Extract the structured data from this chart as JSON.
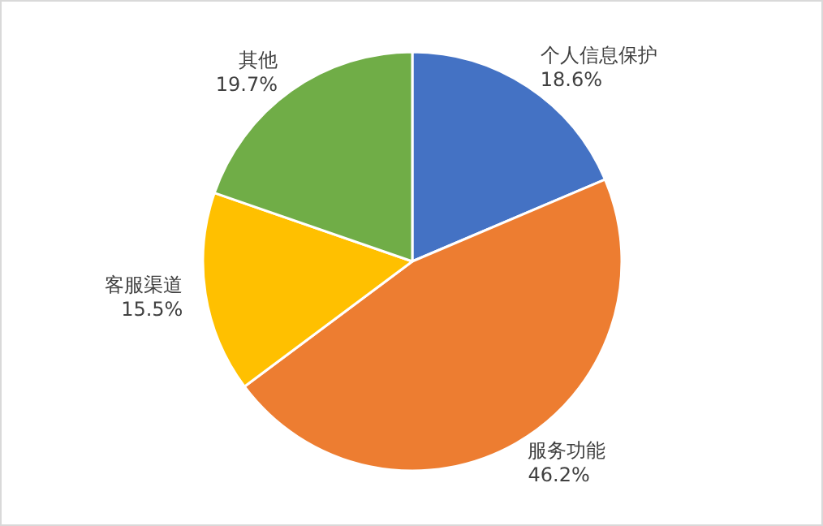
{
  "chart_data": {
    "type": "pie",
    "categories": [
      "个人信息保护",
      "服务功能",
      "客服渠道",
      "其他"
    ],
    "values": [
      18.6,
      46.2,
      15.5,
      19.7
    ],
    "value_labels": [
      "18.6%",
      "46.2%",
      "15.5%",
      "19.7%"
    ],
    "colors": [
      "#4472c4",
      "#ed7d31",
      "#ffc000",
      "#70ad47"
    ]
  }
}
